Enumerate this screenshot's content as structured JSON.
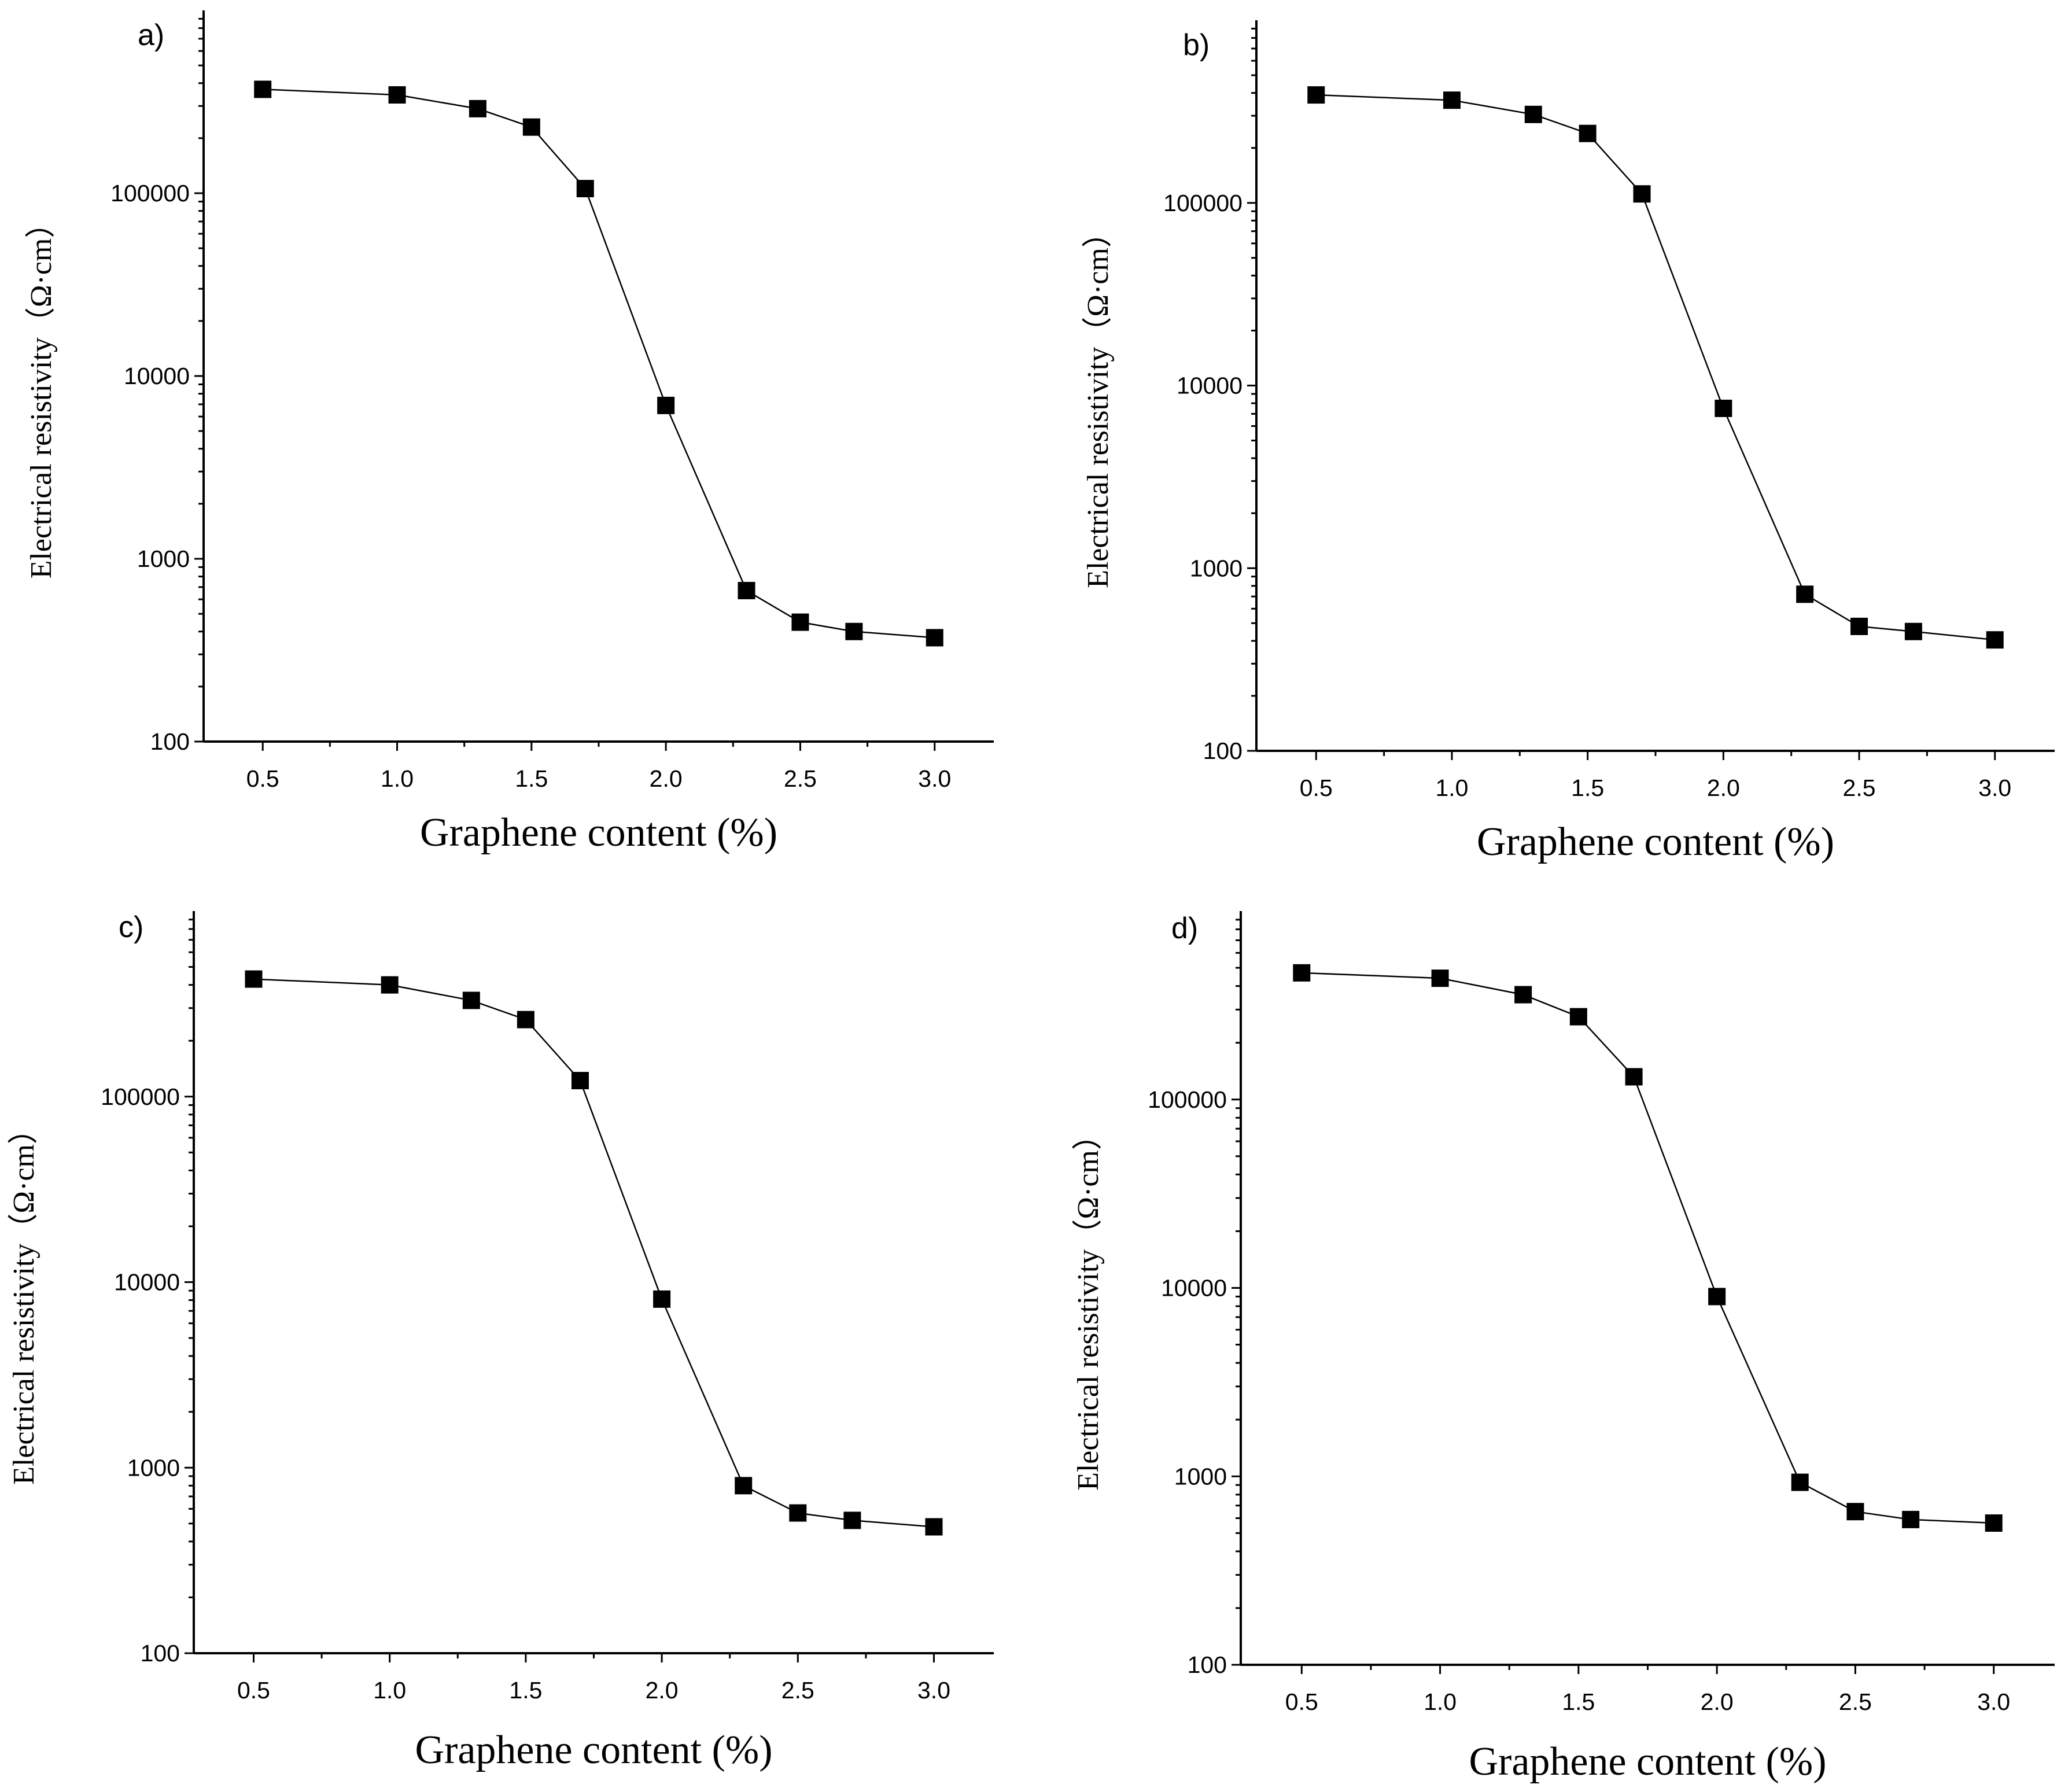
{
  "colors": {
    "axis": "#000000",
    "series": "#000000",
    "marker": "#000000",
    "background": "#ffffff"
  },
  "chart_data": [
    {
      "panel": "a)",
      "type": "line",
      "title": "",
      "xlabel": "Graphene content (%)",
      "ylabel": "Electrical resistivity（Ω·cm）",
      "yscale": "log",
      "xlim": [
        0.28,
        3.22
      ],
      "ylim": [
        100,
        1000000
      ],
      "xticks": [
        "0.5",
        "1.0",
        "1.5",
        "2.0",
        "2.5",
        "3.0"
      ],
      "yticks": [
        "100",
        "1000",
        "10000",
        "100000"
      ],
      "marker": "square",
      "x": [
        0.5,
        1.0,
        1.3,
        1.5,
        1.7,
        2.0,
        2.3,
        2.5,
        2.7,
        3.0
      ],
      "values": [
        370000,
        345000,
        290000,
        230000,
        106000,
        6900,
        670,
        450,
        400,
        370
      ]
    },
    {
      "panel": "b)",
      "type": "line",
      "title": "",
      "xlabel": "Graphene content (%)",
      "ylabel": "Electrical resistivity（Ω·cm）",
      "yscale": "log",
      "xlim": [
        0.28,
        3.22
      ],
      "ylim": [
        100,
        1000000
      ],
      "xticks": [
        "0.5",
        "1.0",
        "1.5",
        "2.0",
        "2.5",
        "3.0"
      ],
      "yticks": [
        "100",
        "1000",
        "10000",
        "100000"
      ],
      "marker": "square",
      "x": [
        0.5,
        1.0,
        1.3,
        1.5,
        1.7,
        2.0,
        2.3,
        2.5,
        2.7,
        3.0
      ],
      "values": [
        390000,
        365000,
        305000,
        240000,
        112000,
        7500,
        720,
        480,
        450,
        405
      ]
    },
    {
      "panel": "c)",
      "type": "line",
      "title": "",
      "xlabel": "Graphene content (%)",
      "ylabel": "Electrical resistivity（Ω·cm）",
      "yscale": "log",
      "xlim": [
        0.28,
        3.22
      ],
      "ylim": [
        100,
        1000000
      ],
      "xticks": [
        "0.5",
        "1.0",
        "1.5",
        "2.0",
        "2.5",
        "3.0"
      ],
      "yticks": [
        "100",
        "1000",
        "10000",
        "100000"
      ],
      "marker": "square",
      "x": [
        0.5,
        1.0,
        1.3,
        1.5,
        1.7,
        2.0,
        2.3,
        2.5,
        2.7,
        3.0
      ],
      "values": [
        430000,
        400000,
        330000,
        260000,
        122000,
        8100,
        800,
        570,
        520,
        480
      ]
    },
    {
      "panel": "d)",
      "type": "line",
      "title": "",
      "xlabel": "Graphene content (%)",
      "ylabel": "Electrical resistivity（Ω·cm）",
      "yscale": "log",
      "xlim": [
        0.28,
        3.22
      ],
      "ylim": [
        100,
        1000000
      ],
      "xticks": [
        "0.5",
        "1.0",
        "1.5",
        "2.0",
        "2.5",
        "3.0"
      ],
      "yticks": [
        "100",
        "1000",
        "10000",
        "100000"
      ],
      "marker": "square",
      "x": [
        0.5,
        1.0,
        1.3,
        1.5,
        1.7,
        2.0,
        2.3,
        2.5,
        2.7,
        3.0
      ],
      "values": [
        470000,
        440000,
        360000,
        275000,
        132000,
        9000,
        930,
        650,
        590,
        565
      ]
    }
  ]
}
